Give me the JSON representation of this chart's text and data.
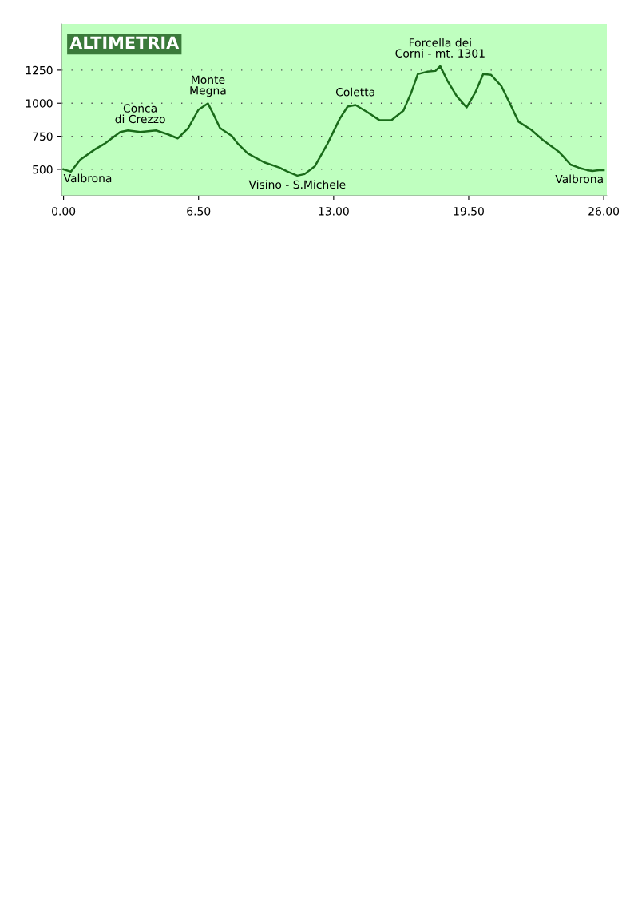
{
  "chart_data": {
    "type": "line",
    "title": "ALTIMETRIA",
    "x": [
      0,
      0.35,
      0.8,
      1.5,
      1.96,
      2.73,
      3.1,
      3.69,
      4.45,
      5.03,
      5.5,
      6.0,
      6.49,
      6.95,
      7.26,
      7.53,
      8.1,
      8.4,
      8.87,
      9.64,
      10.4,
      10.79,
      11.25,
      11.6,
      12.1,
      12.7,
      13.3,
      13.67,
      14.05,
      14.63,
      15.2,
      15.78,
      16.36,
      16.74,
      17.05,
      17.5,
      17.9,
      18.13,
      18.47,
      18.93,
      19.4,
      19.82,
      20.2,
      20.58,
      21.07,
      21.5,
      21.9,
      22.5,
      23.07,
      23.84,
      24.03,
      24.4,
      24.8,
      25.2,
      25.45,
      25.77,
      26
    ],
    "series": [
      {
        "color": "#1a6b1a",
        "values": [
          500,
          482,
          572,
          650,
          692,
          782,
          794,
          782,
          794,
          764,
          734,
          812,
          950,
          998,
          902,
          812,
          752,
          692,
          620,
          554,
          512,
          482,
          452,
          464,
          524,
          692,
          884,
          974,
          986,
          932,
          872,
          872,
          944,
          1082,
          1220,
          1238,
          1244,
          1280,
          1172,
          1052,
          968,
          1082,
          1220,
          1214,
          1130,
          992,
          860,
          800,
          722,
          632,
          602,
          536,
          512,
          494,
          488,
          494,
          494
        ]
      }
    ],
    "xlim": [
      -0.1,
      26.15
    ],
    "ylim": [
      300,
      1600
    ],
    "xticks": [
      {
        "value": 0,
        "label": "0.00"
      },
      {
        "value": 6.5,
        "label": "6.50"
      },
      {
        "value": 13,
        "label": "13.00"
      },
      {
        "value": 19.5,
        "label": "19.50"
      },
      {
        "value": 26,
        "label": "26.00"
      }
    ],
    "yticks": [
      500,
      750,
      1000,
      1250
    ],
    "grid": "y",
    "marker": "none",
    "line_style": "solid",
    "legend": false,
    "annotations": [
      {
        "text": "Valbrona",
        "x": 0,
        "y": 500
      },
      {
        "text": "Conca\ndi Crezzo",
        "x": 3.69,
        "y": 782
      },
      {
        "text": "Monte\nMegna",
        "x": 6.95,
        "y": 998
      },
      {
        "text": "Visino - S.Michele",
        "x": 11.25,
        "y": 452
      },
      {
        "text": "Coletta",
        "x": 14.05,
        "y": 986
      },
      {
        "text": "Forcella dei\nCorni - mt. 1301",
        "x": 18.13,
        "y": 1280
      },
      {
        "text": "Valbrona",
        "x": 26,
        "y": 494
      }
    ]
  }
}
